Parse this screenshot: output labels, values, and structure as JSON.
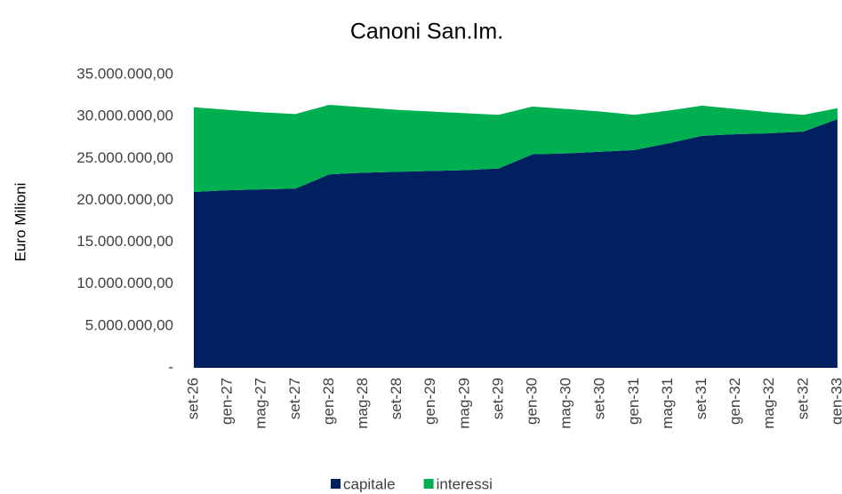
{
  "chart_data": {
    "type": "stacked_area",
    "title": "Canoni San.Im.",
    "y_label": "Euro Milioni",
    "categories": [
      "set-26",
      "gen-27",
      "mag-27",
      "set-27",
      "gen-28",
      "mag-28",
      "set-28",
      "gen-29",
      "mag-29",
      "set-29",
      "gen-30",
      "mag-30",
      "set-30",
      "gen-31",
      "mag-31",
      "set-31",
      "gen-32",
      "mag-32",
      "set-32",
      "gen-33"
    ],
    "series": [
      {
        "name": "capitale",
        "color": "#002060",
        "values": [
          21000000,
          21200000,
          21300000,
          21400000,
          23100000,
          23300000,
          23400000,
          23500000,
          23600000,
          23800000,
          25500000,
          25600000,
          25800000,
          26000000,
          26800000,
          27700000,
          27900000,
          28000000,
          28200000,
          29700000
        ]
      },
      {
        "name": "interessi",
        "color": "#00b050",
        "values": [
          10100000,
          9600000,
          9200000,
          8900000,
          8300000,
          7800000,
          7400000,
          7100000,
          6800000,
          6400000,
          5700000,
          5300000,
          4800000,
          4200000,
          3900000,
          3600000,
          3000000,
          2500000,
          2000000,
          1300000
        ]
      }
    ],
    "ylim": [
      0,
      35000000
    ],
    "yticks": [
      {
        "value": 0,
        "label": "-"
      },
      {
        "value": 5000000,
        "label": "5.000.000,00"
      },
      {
        "value": 10000000,
        "label": "10.000.000,00"
      },
      {
        "value": 15000000,
        "label": "15.000.000,00"
      },
      {
        "value": 20000000,
        "label": "20.000.000,00"
      },
      {
        "value": 25000000,
        "label": "25.000.000,00"
      },
      {
        "value": 30000000,
        "label": "30.000.000,00"
      },
      {
        "value": 35000000,
        "label": "35.000.000,00"
      }
    ],
    "legend": "bottom",
    "grid": false
  }
}
